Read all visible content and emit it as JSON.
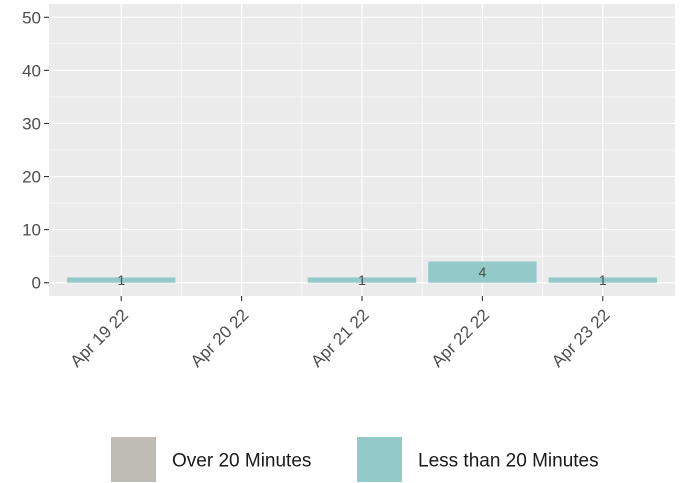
{
  "chart_data": {
    "type": "bar",
    "categories": [
      "Apr 19 22",
      "Apr 20 22",
      "Apr 21 22",
      "Apr 22 22",
      "Apr 23 22"
    ],
    "series": [
      {
        "name": "Over 20 Minutes",
        "color": "#bfbcb5",
        "values": [
          0,
          0,
          0,
          0,
          0
        ]
      },
      {
        "name": "Less than 20 Minutes",
        "color": "#94c9ca",
        "values": [
          1,
          0,
          1,
          4,
          1
        ]
      }
    ],
    "data_labels": [
      "1",
      "",
      "1",
      "4",
      "1"
    ],
    "y_ticks": [
      "0",
      "10",
      "20",
      "30",
      "40",
      "50"
    ],
    "ylim": [
      -2.5,
      52.5
    ],
    "grid": true,
    "legend_position": "bottom",
    "panel_background": "#ebebeb",
    "grid_color": "#ffffff"
  }
}
